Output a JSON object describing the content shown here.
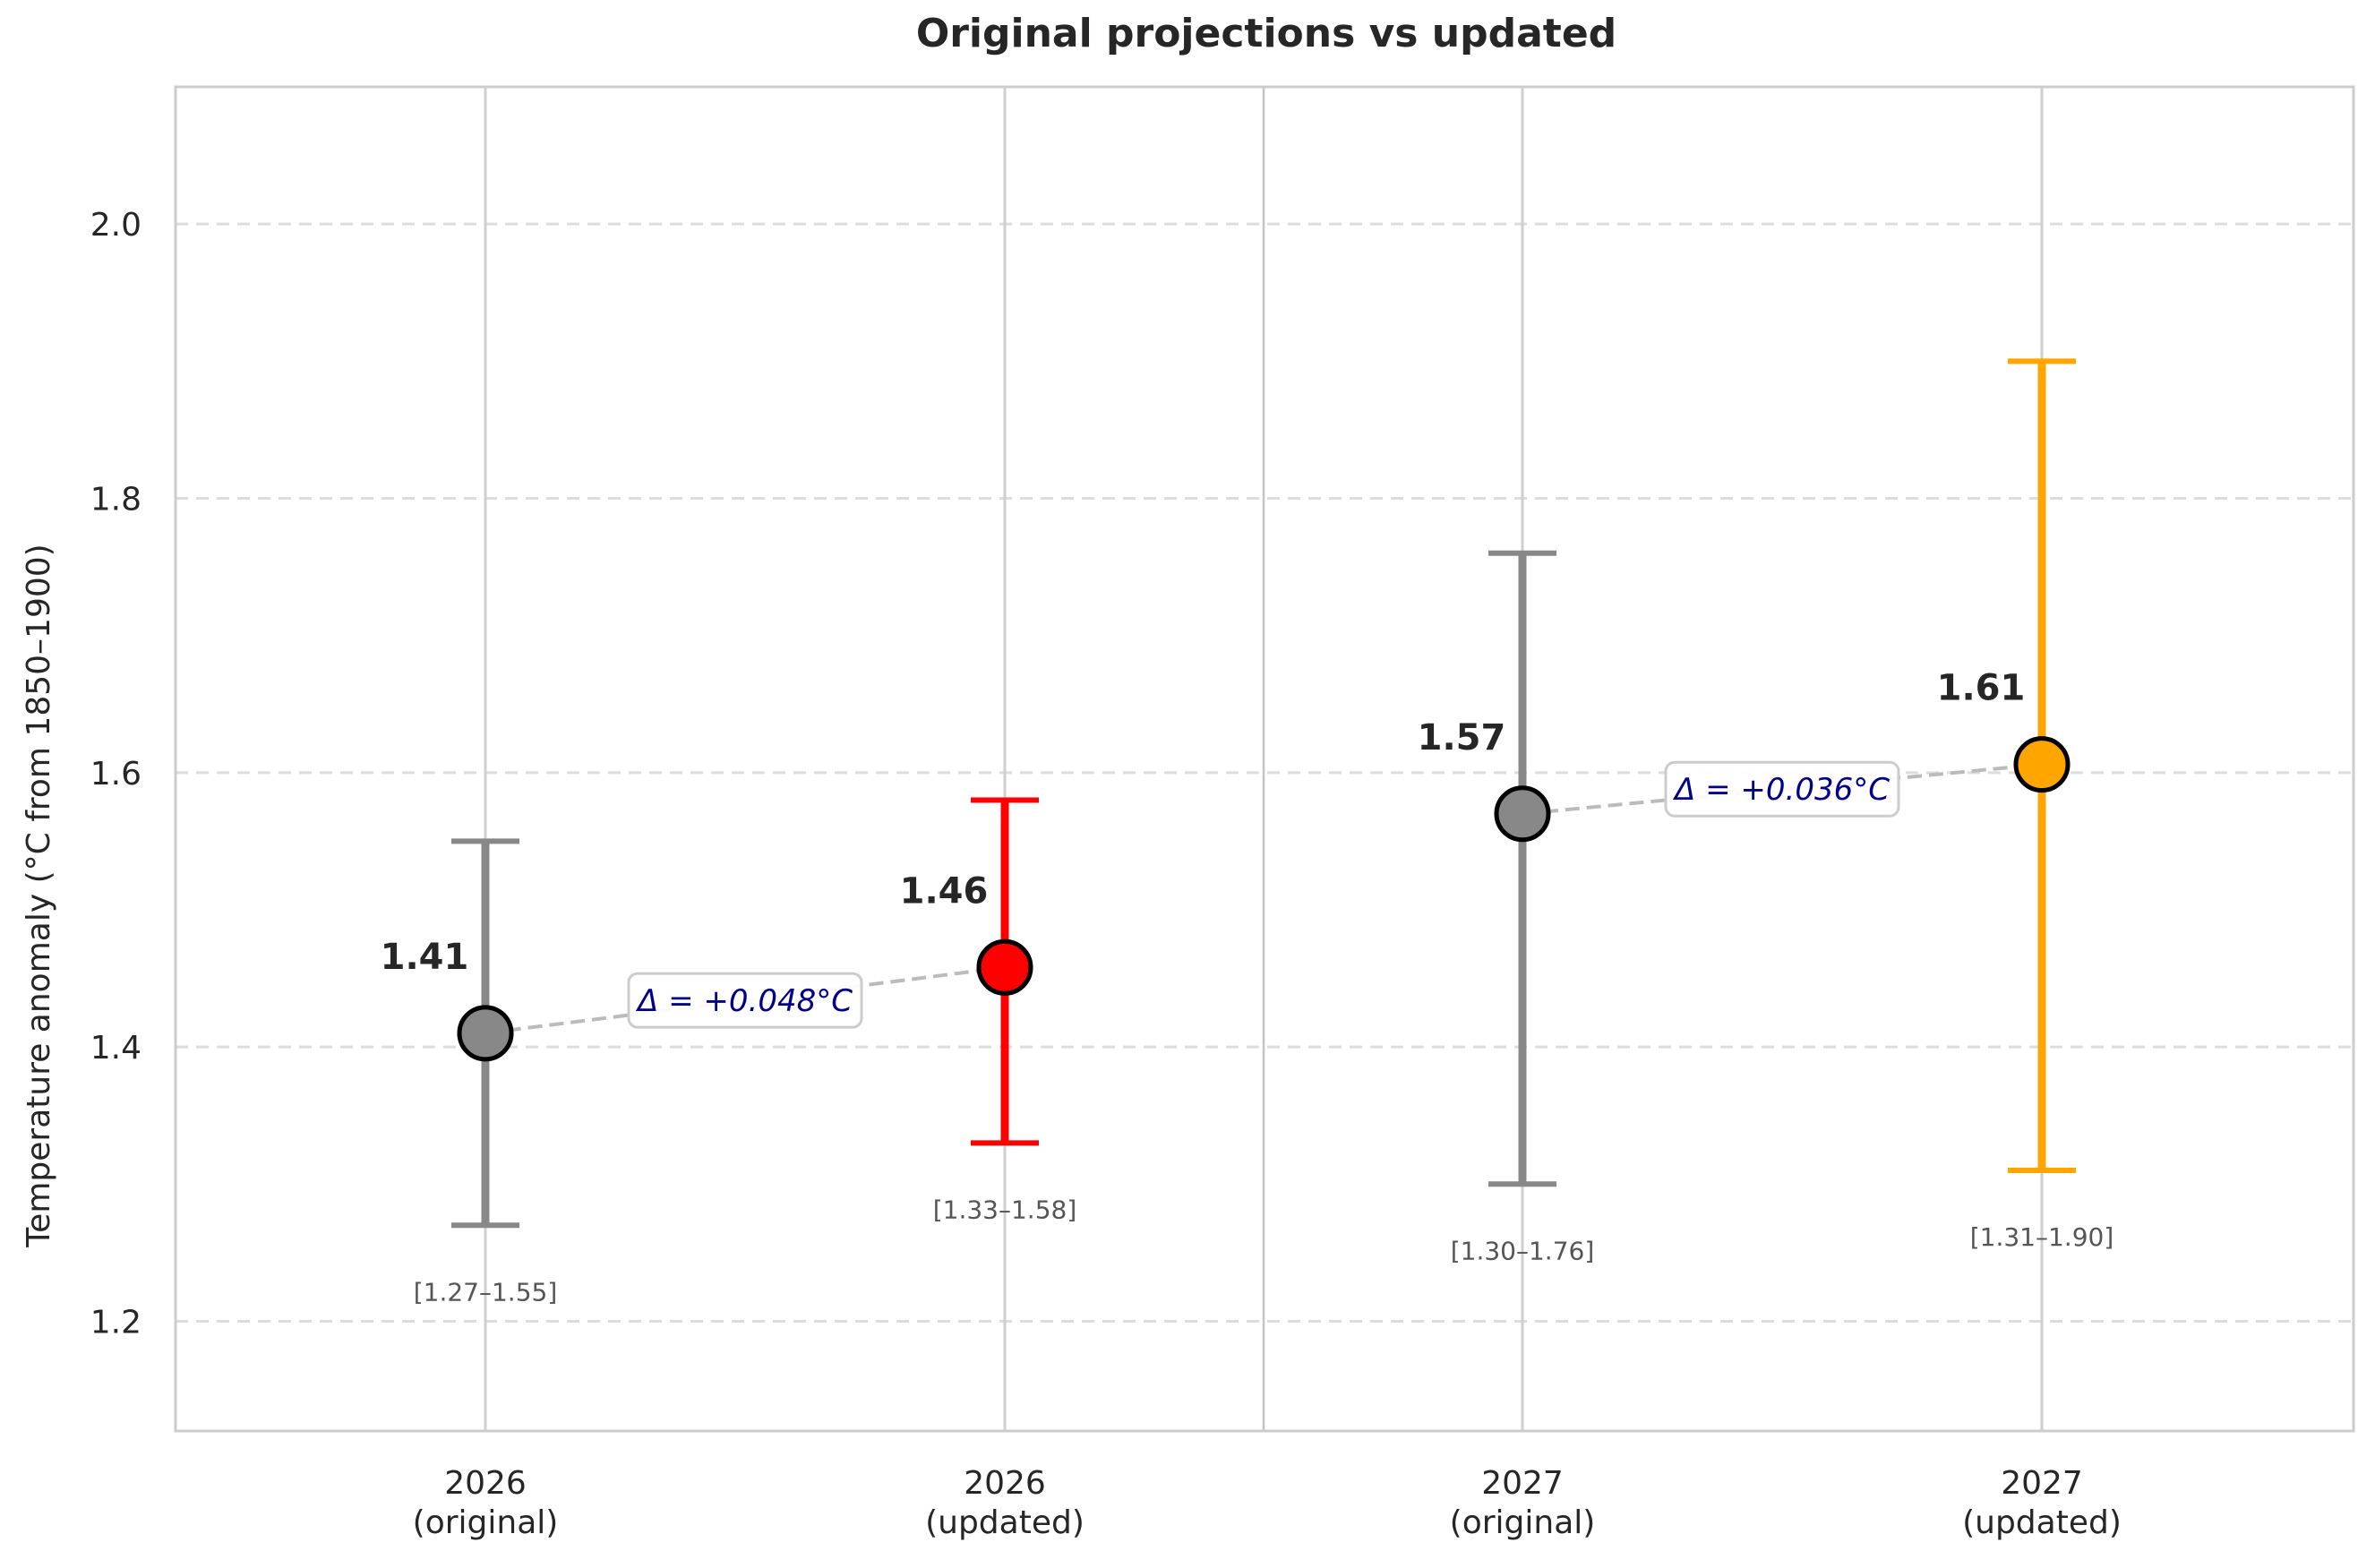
{
  "chart_data": {
    "type": "scatter",
    "title": "Original projections vs updated",
    "xlabel": "",
    "ylabel": "Temperature anomaly (°C from 1850–1900)",
    "ylim": [
      1.12,
      2.1
    ],
    "yticks": [
      1.2,
      1.4,
      1.6,
      1.8,
      2.0
    ],
    "ytick_labels": [
      "1.2",
      "1.4",
      "1.6",
      "1.8",
      "2.0"
    ],
    "grid": true,
    "categories": [
      [
        "2026",
        "(original)"
      ],
      [
        "2026",
        "(updated)"
      ],
      [
        "2027",
        "(original)"
      ],
      [
        "2027",
        "(updated)"
      ]
    ],
    "points": [
      {
        "value": 1.41,
        "low": 1.27,
        "high": 1.55,
        "label": "1.41",
        "range_label": "[1.27–1.55]",
        "color": "#888888"
      },
      {
        "value": 1.458,
        "low": 1.33,
        "high": 1.58,
        "label": "1.46",
        "range_label": "[1.33–1.58]",
        "color": "#ff0000"
      },
      {
        "value": 1.57,
        "low": 1.3,
        "high": 1.76,
        "label": "1.57",
        "range_label": "[1.30–1.76]",
        "color": "#888888"
      },
      {
        "value": 1.606,
        "low": 1.31,
        "high": 1.9,
        "label": "1.61",
        "range_label": "[1.31–1.90]",
        "color": "#ffa500"
      }
    ],
    "deltas": [
      {
        "from": 0,
        "to": 1,
        "label": "Δ = +0.048°C"
      },
      {
        "from": 2,
        "to": 3,
        "label": "Δ = +0.036°C"
      }
    ],
    "separator_between": [
      1,
      2
    ]
  },
  "colors": {
    "text": "#262626",
    "range_text": "#555555",
    "delta_text": "#00008b",
    "connector": "#bbbbbb",
    "grid": "#dddddd",
    "spine": "#cccccc"
  }
}
